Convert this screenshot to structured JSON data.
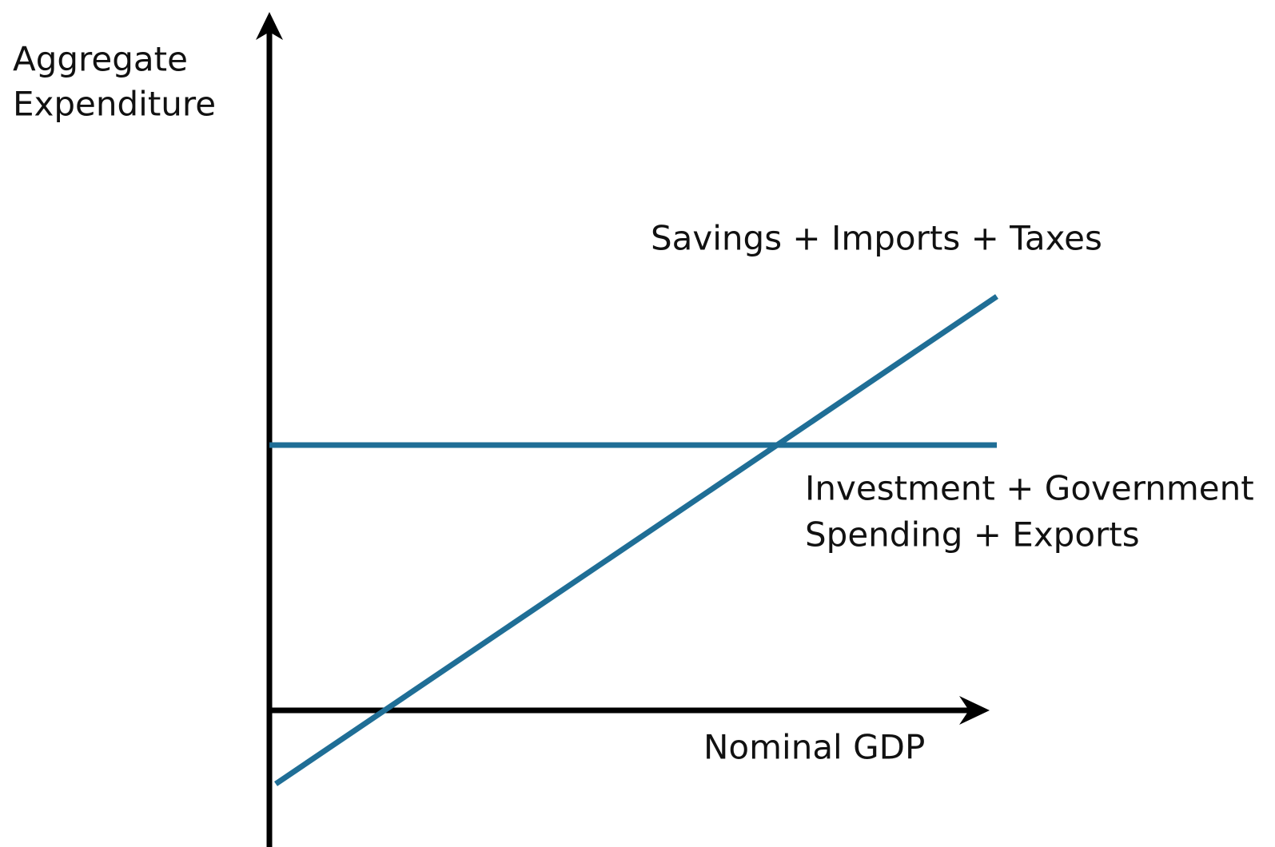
{
  "axes": {
    "y_label": [
      "Aggregate",
      "Expenditure"
    ],
    "x_label": "Nominal GDP"
  },
  "lines": [
    {
      "label": [
        "Savings + Imports + Taxes"
      ]
    },
    {
      "label": [
        "Investment + Government",
        "Spending + Exports"
      ]
    }
  ]
}
